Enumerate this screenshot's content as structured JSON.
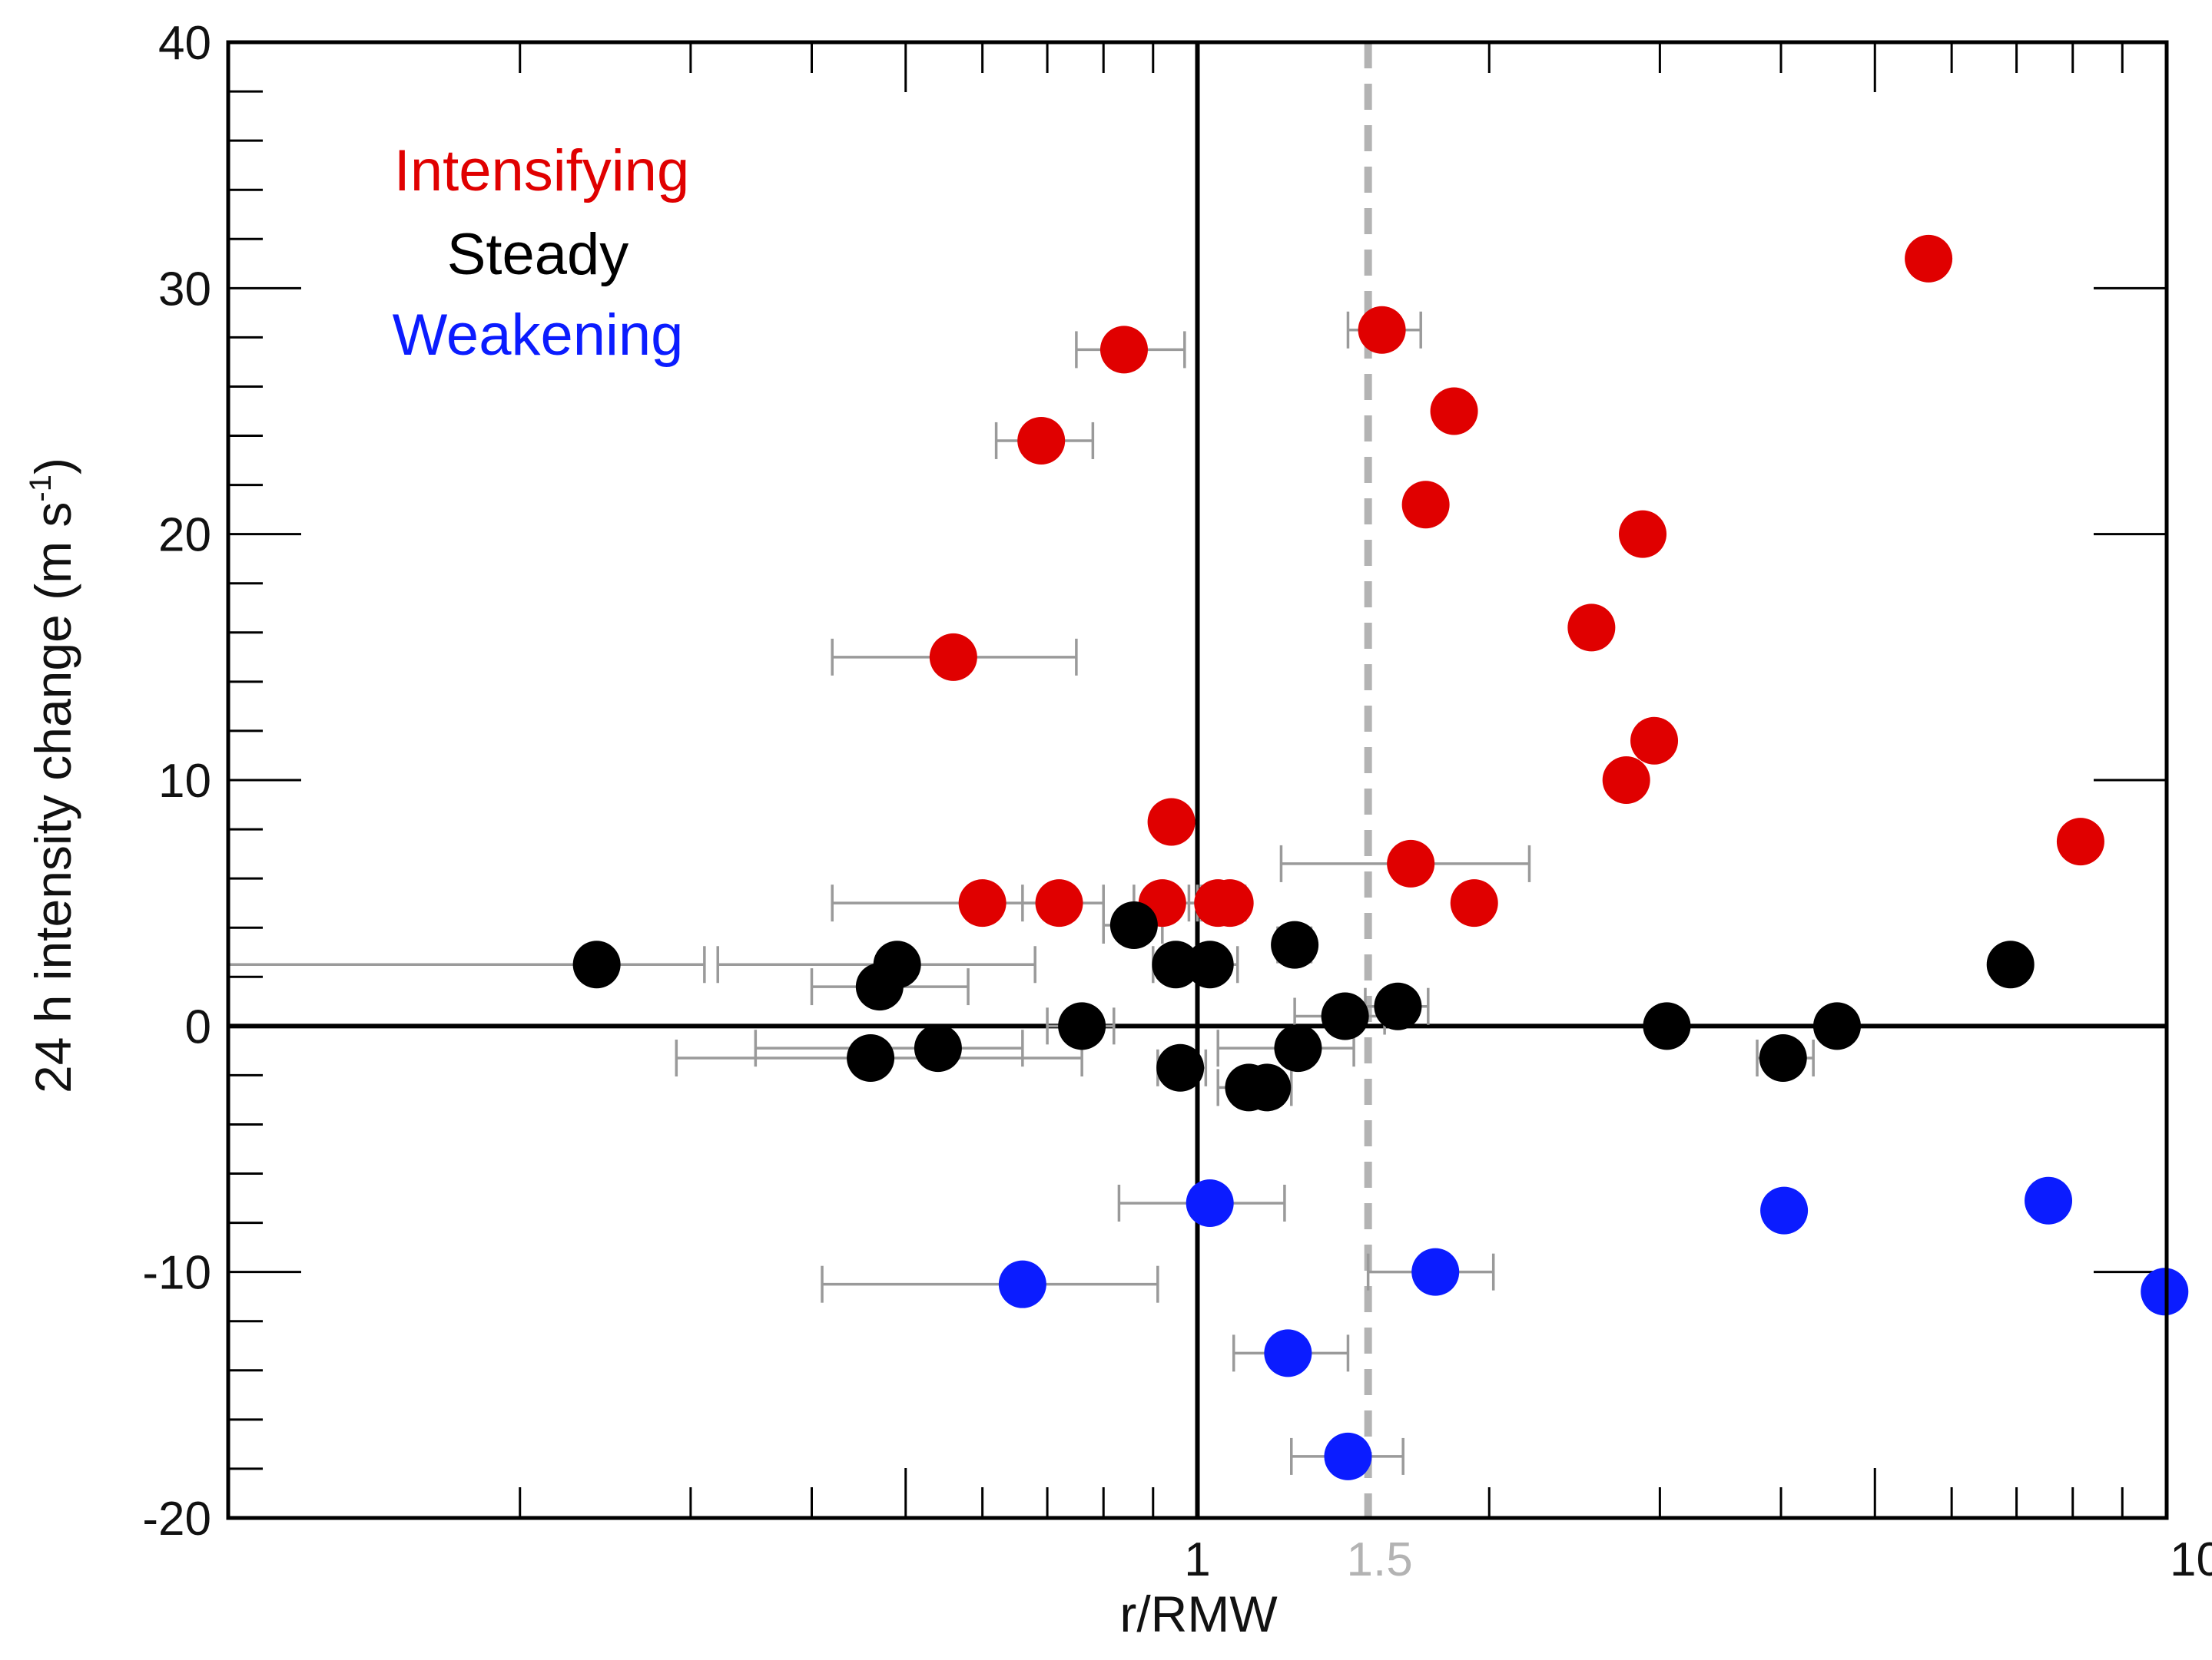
{
  "chart_data": {
    "type": "scatter",
    "xscale": "log",
    "xlabel": "r/RMW",
    "ylabel": "24 h intensity change (m s",
    "ylabel_superscript": "-1",
    "ylabel_close": ")",
    "xlim": [
      0.1,
      10
    ],
    "ylim": [
      -20,
      40
    ],
    "x_tick_labels": [
      {
        "value": 1,
        "label": "1"
      },
      {
        "value": 10,
        "label": "10"
      }
    ],
    "ref_line": {
      "value": 1.5,
      "label": "1.5",
      "color": "#b3b3b3"
    },
    "y_tick_labels": [
      {
        "value": 40,
        "label": "40"
      },
      {
        "value": 30,
        "label": "30"
      },
      {
        "value": 20,
        "label": "20"
      },
      {
        "value": 10,
        "label": "10"
      },
      {
        "value": 0,
        "label": "0"
      },
      {
        "value": -10,
        "label": "-10"
      },
      {
        "value": -20,
        "label": "-20"
      }
    ],
    "grid": false,
    "legend_position": "top-left",
    "series": [
      {
        "name": "Intensifying",
        "color": "#e00000",
        "points": [
          {
            "x": 0.56,
            "y": 15.0,
            "xlo": 0.42,
            "xhi": 0.75
          },
          {
            "x": 0.69,
            "y": 23.8,
            "xlo": 0.62,
            "xhi": 0.78
          },
          {
            "x": 0.84,
            "y": 27.5,
            "xlo": 0.75,
            "xhi": 0.97
          },
          {
            "x": 0.6,
            "y": 5.0,
            "xlo": 0.42,
            "xhi": 0.72
          },
          {
            "x": 0.72,
            "y": 5.0,
            "xlo": 0.66,
            "xhi": 0.8
          },
          {
            "x": 0.92,
            "y": 5.0,
            "xlo": 0.86,
            "xhi": 1.0
          },
          {
            "x": 0.94,
            "y": 8.3,
            "xlo": 0.91,
            "xhi": 0.97
          },
          {
            "x": 1.05,
            "y": 5.0,
            "xlo": 0.98,
            "xhi": 1.1
          },
          {
            "x": 1.08,
            "y": 5.0,
            "xlo": 1.01,
            "xhi": 1.12
          },
          {
            "x": 1.55,
            "y": 28.3,
            "xlo": 1.43,
            "xhi": 1.7
          },
          {
            "x": 1.66,
            "y": 6.6,
            "xlo": 1.22,
            "xhi": 2.2
          },
          {
            "x": 1.72,
            "y": 21.2,
            "xlo": 1.67,
            "xhi": 1.78
          },
          {
            "x": 1.84,
            "y": 25.0,
            "xlo": 1.78,
            "xhi": 1.9
          },
          {
            "x": 1.93,
            "y": 5.0,
            "xlo": 1.87,
            "xhi": 1.99
          },
          {
            "x": 2.55,
            "y": 16.2,
            "xlo": 2.47,
            "xhi": 2.63
          },
          {
            "x": 2.77,
            "y": 10.0,
            "xlo": 2.69,
            "xhi": 2.85
          },
          {
            "x": 2.88,
            "y": 20.0,
            "xlo": 2.8,
            "xhi": 2.96
          },
          {
            "x": 2.96,
            "y": 11.6,
            "xlo": 2.86,
            "xhi": 3.06
          },
          {
            "x": 5.68,
            "y": 31.2,
            "xlo": 5.5,
            "xhi": 5.86
          },
          {
            "x": 8.15,
            "y": 7.5,
            "xlo": 7.9,
            "xhi": 8.4
          }
        ]
      },
      {
        "name": "Steady",
        "color": "#000000",
        "points": [
          {
            "x": 0.24,
            "y": 2.5,
            "xlo": 0.1,
            "xhi": 0.31
          },
          {
            "x": 0.47,
            "y": 1.6,
            "xlo": 0.4,
            "xhi": 0.58
          },
          {
            "x": 0.49,
            "y": 2.5,
            "xlo": 0.32,
            "xhi": 0.68
          },
          {
            "x": 0.46,
            "y": -1.3,
            "xlo": 0.29,
            "xhi": 0.76
          },
          {
            "x": 0.54,
            "y": -0.9,
            "xlo": 0.35,
            "xhi": 0.66
          },
          {
            "x": 0.76,
            "y": 0.0,
            "xlo": 0.7,
            "xhi": 0.82
          },
          {
            "x": 0.86,
            "y": 4.1,
            "xlo": 0.8,
            "xhi": 0.92
          },
          {
            "x": 0.95,
            "y": 2.5,
            "xlo": 0.9,
            "xhi": 1.0
          },
          {
            "x": 1.03,
            "y": 2.5,
            "xlo": 0.98,
            "xhi": 1.1
          },
          {
            "x": 0.96,
            "y": -1.7,
            "xlo": 0.91,
            "xhi": 1.02
          },
          {
            "x": 1.13,
            "y": -2.5,
            "xlo": 1.05,
            "xhi": 1.19
          },
          {
            "x": 1.18,
            "y": -2.5,
            "xlo": 1.11,
            "xhi": 1.25
          },
          {
            "x": 1.26,
            "y": 3.3,
            "xlo": 1.21,
            "xhi": 1.31
          },
          {
            "x": 1.27,
            "y": -0.9,
            "xlo": 1.05,
            "xhi": 1.45
          },
          {
            "x": 1.42,
            "y": 0.4,
            "xlo": 1.26,
            "xhi": 1.56
          },
          {
            "x": 1.61,
            "y": 0.8,
            "xlo": 1.49,
            "xhi": 1.73
          },
          {
            "x": 3.05,
            "y": 0.0,
            "xlo": 2.96,
            "xhi": 3.14
          },
          {
            "x": 4.02,
            "y": -1.3,
            "xlo": 3.78,
            "xhi": 4.32
          },
          {
            "x": 4.57,
            "y": 0.0,
            "xlo": 4.45,
            "xhi": 4.7
          },
          {
            "x": 6.9,
            "y": 2.5,
            "xlo": 6.7,
            "xhi": 7.1
          }
        ]
      },
      {
        "name": "Weakening",
        "color": "#0b1cff",
        "points": [
          {
            "x": 0.66,
            "y": -10.5,
            "xlo": 0.41,
            "xhi": 0.91
          },
          {
            "x": 1.03,
            "y": -7.2,
            "xlo": 0.83,
            "xhi": 1.23
          },
          {
            "x": 1.24,
            "y": -13.3,
            "xlo": 1.09,
            "xhi": 1.43
          },
          {
            "x": 1.43,
            "y": -17.5,
            "xlo": 1.25,
            "xhi": 1.63
          },
          {
            "x": 1.76,
            "y": -10.0,
            "xlo": 1.5,
            "xhi": 2.02
          },
          {
            "x": 4.03,
            "y": -7.5,
            "xlo": 3.94,
            "xhi": 4.12
          },
          {
            "x": 7.55,
            "y": -7.1,
            "xlo": 7.3,
            "xhi": 7.8
          },
          {
            "x": 9.95,
            "y": -10.8,
            "xlo": 9.7,
            "xhi": 10.0
          }
        ]
      }
    ]
  }
}
